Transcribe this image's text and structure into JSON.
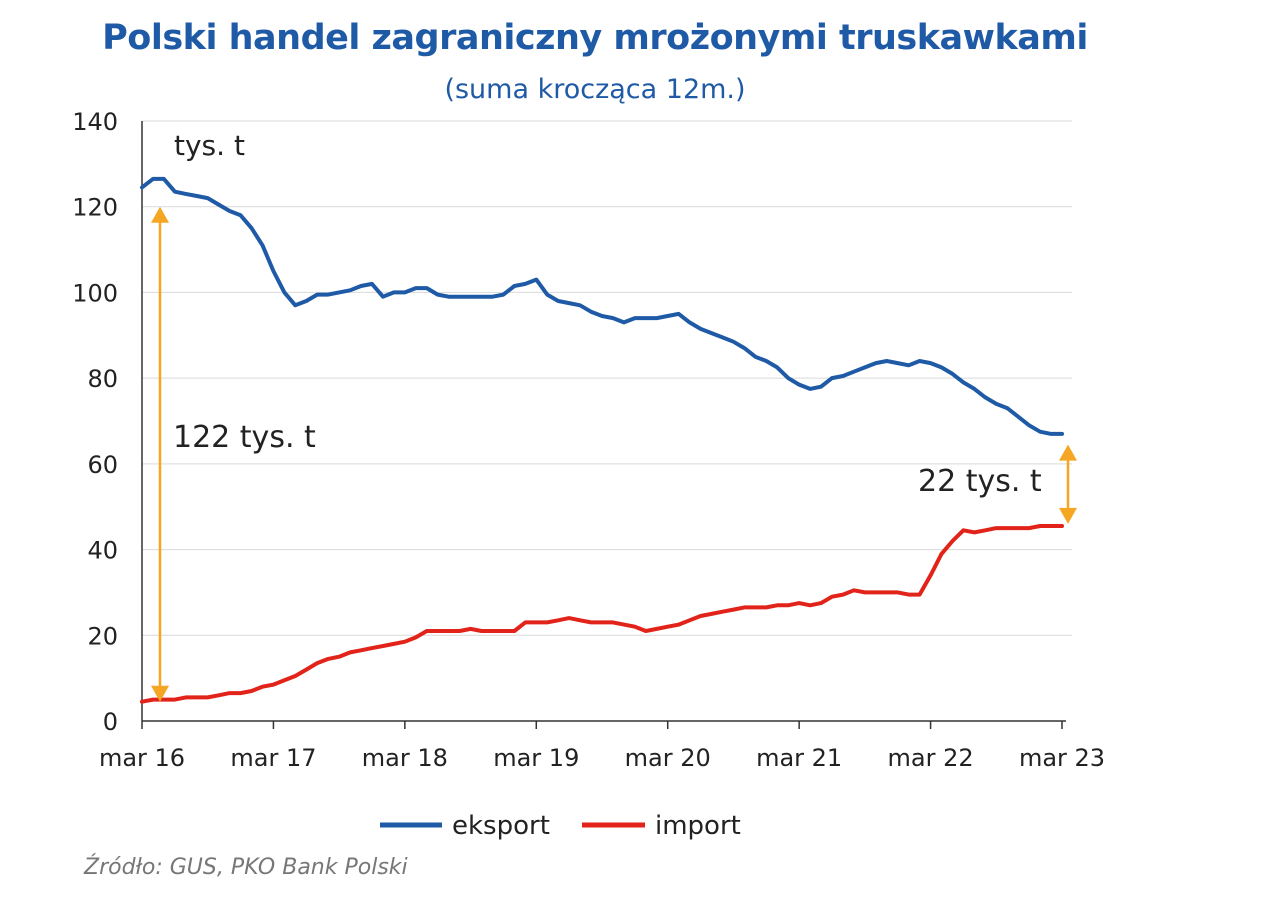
{
  "chart_data": {
    "type": "line",
    "title": "Polski handel zagraniczny mrożonymi truskawkami",
    "subtitle": "(suma krocząca 12m.)",
    "unit_label": "tys. t",
    "ylim": [
      0,
      140
    ],
    "yticks": [
      "0",
      "20",
      "40",
      "60",
      "80",
      "100",
      "120",
      "140"
    ],
    "xlim": [
      0,
      84
    ],
    "xticks": [
      {
        "label": "mar 16",
        "x": 0
      },
      {
        "label": "mar 17",
        "x": 12
      },
      {
        "label": "mar 18",
        "x": 24
      },
      {
        "label": "mar 19",
        "x": 36
      },
      {
        "label": "mar 20",
        "x": 48
      },
      {
        "label": "mar 21",
        "x": 60
      },
      {
        "label": "mar 22",
        "x": 72
      },
      {
        "label": "mar 23",
        "x": 84
      }
    ],
    "series": [
      {
        "name": "eksport",
        "color": "#1f5aa6",
        "x": [
          0,
          1,
          2,
          3,
          4,
          5,
          6,
          7,
          8,
          9,
          10,
          11,
          12,
          13,
          14,
          15,
          16,
          17,
          18,
          19,
          20,
          21,
          22,
          23,
          24,
          25,
          26,
          27,
          28,
          29,
          30,
          31,
          32,
          33,
          34,
          35,
          36,
          37,
          38,
          39,
          40,
          41,
          42,
          43,
          44,
          45,
          46,
          47,
          48,
          49,
          50,
          51,
          52,
          53,
          54,
          55,
          56,
          57,
          58,
          59,
          60,
          61,
          62,
          63,
          64,
          65,
          66,
          67,
          68,
          69,
          70,
          71,
          72,
          73,
          74,
          75,
          76,
          77,
          78,
          79,
          80,
          81,
          82,
          83,
          84
        ],
        "values": [
          124.5,
          126.5,
          126.5,
          123.5,
          123,
          122.5,
          122,
          120.5,
          119,
          118,
          115,
          111,
          105,
          100,
          97,
          98,
          99.5,
          99.5,
          100,
          100.5,
          101.5,
          102,
          99,
          100,
          100,
          101,
          101,
          99.5,
          99,
          99,
          99,
          99,
          99,
          99.5,
          101.5,
          102,
          103,
          99.5,
          98,
          97.5,
          97,
          95.5,
          94.5,
          94,
          93,
          94,
          94,
          94,
          94.5,
          95,
          93,
          91.5,
          90.5,
          89.5,
          88.5,
          87,
          85,
          84,
          82.5,
          80,
          78.5,
          77.5,
          78,
          80,
          80.5,
          81.5,
          82.5,
          83.5,
          84,
          83.5,
          83,
          84,
          83.5,
          82.5,
          81,
          79,
          77.5,
          75.5,
          74,
          73,
          71,
          69,
          67.5,
          67,
          67
        ]
      },
      {
        "name": "import",
        "color": "#e2231a",
        "x": [
          0,
          1,
          2,
          3,
          4,
          5,
          6,
          7,
          8,
          9,
          10,
          11,
          12,
          13,
          14,
          15,
          16,
          17,
          18,
          19,
          20,
          21,
          22,
          23,
          24,
          25,
          26,
          27,
          28,
          29,
          30,
          31,
          32,
          33,
          34,
          35,
          36,
          37,
          38,
          39,
          40,
          41,
          42,
          43,
          44,
          45,
          46,
          47,
          48,
          49,
          50,
          51,
          52,
          53,
          54,
          55,
          56,
          57,
          58,
          59,
          60,
          61,
          62,
          63,
          64,
          65,
          66,
          67,
          68,
          69,
          70,
          71,
          72,
          73,
          74,
          75,
          76,
          77,
          78,
          79,
          80,
          81,
          82,
          83,
          84
        ],
        "values": [
          4.5,
          5,
          5,
          5,
          5.5,
          5.5,
          5.5,
          6,
          6.5,
          6.5,
          7,
          8,
          8.5,
          9.5,
          10.5,
          12,
          13.5,
          14.5,
          15,
          16,
          16.5,
          17,
          17.5,
          18,
          18.5,
          19.5,
          21,
          21,
          21,
          21,
          21.5,
          21,
          21,
          21,
          21,
          23,
          23,
          23,
          23.5,
          24,
          23.5,
          23,
          23,
          23,
          22.5,
          22,
          21,
          21.5,
          22,
          22.5,
          23.5,
          24.5,
          25,
          25.5,
          26,
          26.5,
          26.5,
          26.5,
          27,
          27,
          27.5,
          27,
          27.5,
          29,
          29.5,
          30.5,
          30,
          30,
          30,
          30,
          29.5,
          29.5,
          34,
          39,
          42,
          44.5,
          44,
          44.5,
          45,
          45,
          45,
          45,
          45.5,
          45.5,
          45.5
        ]
      }
    ],
    "annotations": [
      {
        "text": "tys. t",
        "at": "top-left unit label"
      },
      {
        "text": "122 tys. t",
        "at": "left arrow, difference in 2016",
        "arrow_from": 4,
        "arrow_to": 126
      },
      {
        "text": "22 tys. t",
        "at": "right arrow, difference in 2023",
        "arrow_from": 45.5,
        "arrow_to": 67
      }
    ],
    "arrow_color": "#f5a623",
    "legend": {
      "position": "bottom-center",
      "entries": [
        "eksport",
        "import"
      ]
    },
    "source": "Źródło: GUS, PKO Bank Polski",
    "grid": true
  }
}
